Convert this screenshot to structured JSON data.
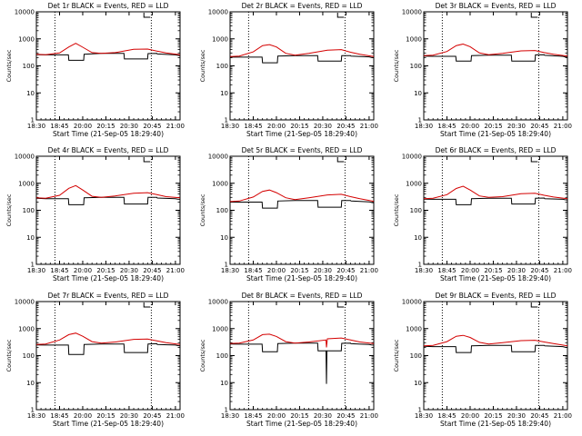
{
  "chart_data": [
    {
      "type": "line",
      "title": "Det 1r BLACK = Events, RED = LLD",
      "xlabel": "Start Time (21-Sep-05 18:29:40)",
      "ylabel": "Counts/sec",
      "xticks": [
        "18:30",
        "18:45",
        "20:00",
        "20:15",
        "20:30",
        "20:45",
        "21:00"
      ],
      "ylim": [
        1,
        10000
      ],
      "yscale": "log",
      "series": [
        {
          "color": "#000000",
          "x": [
            0,
            2,
            6.9,
            7,
            10.2,
            10.3,
            14,
            18.9,
            19,
            23,
            24,
            24.1,
            26,
            26.1,
            30,
            30.5,
            31
          ],
          "y": [
            260,
            255,
            255,
            160,
            160,
            270,
            290,
            290,
            180,
            180,
            180,
            285,
            290,
            275,
            255,
            245,
            240
          ]
        },
        {
          "color": "#d40000",
          "x": [
            0,
            2,
            5,
            7,
            8.5,
            10,
            12,
            14,
            17,
            21,
            24,
            26,
            28,
            31
          ],
          "y": [
            270,
            260,
            300,
            500,
            680,
            490,
            310,
            290,
            310,
            410,
            420,
            350,
            300,
            260
          ]
        }
      ]
    },
    {
      "type": "line",
      "title": "Det 2r BLACK = Events, RED = LLD",
      "xlabel": "Start Time (21-Sep-05 18:29:40)",
      "ylabel": "Counts/sec",
      "xticks": [
        "18:30",
        "18:45",
        "20:00",
        "20:15",
        "20:30",
        "20:45",
        "21:00"
      ],
      "ylim": [
        1,
        10000
      ],
      "yscale": "log",
      "series": [
        {
          "color": "#000000",
          "x": [
            0,
            2,
            6.9,
            7,
            10.2,
            10.3,
            14,
            18.9,
            19,
            23,
            24,
            24.1,
            26,
            26.1,
            30,
            30.5,
            31
          ],
          "y": [
            210,
            210,
            210,
            130,
            130,
            230,
            240,
            240,
            150,
            150,
            150,
            240,
            240,
            230,
            215,
            205,
            200
          ]
        },
        {
          "color": "#d40000",
          "x": [
            0,
            2,
            5,
            7,
            8.5,
            10,
            12,
            14,
            17,
            21,
            24,
            26,
            28,
            31
          ],
          "y": [
            220,
            230,
            330,
            560,
            610,
            500,
            290,
            250,
            290,
            380,
            400,
            320,
            270,
            220
          ]
        }
      ]
    },
    {
      "type": "line",
      "title": "Det 3r BLACK = Events, RED = LLD",
      "xlabel": "Start Time (21-Sep-05 18:29:40)",
      "ylabel": "Counts/sec",
      "xticks": [
        "18:30",
        "18:45",
        "20:00",
        "20:15",
        "20:30",
        "20:45",
        "21:00"
      ],
      "ylim": [
        1,
        10000
      ],
      "yscale": "log",
      "series": [
        {
          "color": "#000000",
          "x": [
            0,
            2,
            6.9,
            7,
            10.2,
            10.3,
            14,
            18.9,
            19,
            23,
            24,
            24.1,
            26,
            26.1,
            30,
            30.5,
            31
          ],
          "y": [
            230,
            225,
            225,
            150,
            150,
            240,
            250,
            250,
            150,
            150,
            150,
            255,
            260,
            245,
            225,
            215,
            210
          ]
        },
        {
          "color": "#d40000",
          "x": [
            0,
            2,
            5,
            7,
            8.5,
            10,
            12,
            14,
            17,
            21,
            24,
            26,
            28,
            31
          ],
          "y": [
            240,
            250,
            340,
            560,
            640,
            510,
            300,
            260,
            290,
            360,
            370,
            310,
            270,
            230
          ]
        }
      ]
    },
    {
      "type": "line",
      "title": "Det 4r BLACK = Events, RED = LLD",
      "xlabel": "Start Time (21-Sep-05 18:29:40)",
      "ylabel": "Counts/sec",
      "xticks": [
        "18:30",
        "18:45",
        "20:00",
        "20:15",
        "20:30",
        "20:45",
        "21:00"
      ],
      "ylim": [
        1,
        10000
      ],
      "yscale": "log",
      "series": [
        {
          "color": "#000000",
          "x": [
            0,
            2,
            6.9,
            7,
            10.2,
            10.3,
            14,
            18.9,
            19,
            23,
            24,
            24.1,
            26,
            26.1,
            30,
            30.5,
            31
          ],
          "y": [
            280,
            270,
            270,
            160,
            160,
            290,
            300,
            300,
            170,
            170,
            170,
            300,
            300,
            285,
            270,
            260,
            255
          ]
        },
        {
          "color": "#d40000",
          "x": [
            0,
            2,
            5,
            7,
            8.5,
            10,
            12,
            14,
            17,
            21,
            24,
            26,
            28,
            31
          ],
          "y": [
            290,
            280,
            360,
            650,
            820,
            560,
            330,
            300,
            340,
            430,
            450,
            380,
            320,
            290
          ]
        }
      ]
    },
    {
      "type": "line",
      "title": "Det 5r BLACK = Events, RED = LLD",
      "xlabel": "Start Time (21-Sep-05 18:29:40)",
      "ylabel": "Counts/sec",
      "xticks": [
        "18:30",
        "18:45",
        "20:00",
        "20:15",
        "20:30",
        "20:45",
        "21:00"
      ],
      "ylim": [
        1,
        10000
      ],
      "yscale": "log",
      "series": [
        {
          "color": "#000000",
          "x": [
            0,
            2,
            6.9,
            7,
            10.2,
            10.3,
            14,
            18.9,
            19,
            23,
            24,
            24.1,
            26,
            26.1,
            30,
            30.5,
            31
          ],
          "y": [
            200,
            200,
            200,
            120,
            120,
            220,
            230,
            230,
            130,
            130,
            130,
            230,
            230,
            220,
            205,
            195,
            190
          ]
        },
        {
          "color": "#d40000",
          "x": [
            0,
            2,
            5,
            7,
            8.5,
            10,
            12,
            14,
            17,
            21,
            24,
            26,
            28,
            31
          ],
          "y": [
            210,
            220,
            310,
            500,
            560,
            450,
            290,
            250,
            290,
            370,
            390,
            320,
            270,
            215
          ]
        }
      ]
    },
    {
      "type": "line",
      "title": "Det 6r BLACK = Events, RED = LLD",
      "xlabel": "Start Time (21-Sep-05 18:29:40)",
      "ylabel": "Counts/sec",
      "xticks": [
        "18:30",
        "18:45",
        "20:00",
        "20:15",
        "20:30",
        "20:45",
        "21:00"
      ],
      "ylim": [
        1,
        10000
      ],
      "yscale": "log",
      "series": [
        {
          "color": "#000000",
          "x": [
            0,
            2,
            6.9,
            7,
            10.2,
            10.3,
            14,
            18.9,
            19,
            23,
            24,
            24.1,
            26,
            26.1,
            30,
            30.5,
            31
          ],
          "y": [
            260,
            255,
            255,
            160,
            160,
            270,
            280,
            280,
            170,
            170,
            170,
            280,
            285,
            270,
            255,
            245,
            240
          ]
        },
        {
          "color": "#d40000",
          "x": [
            0,
            2,
            5,
            7,
            8.5,
            10,
            12,
            14,
            17,
            21,
            24,
            26,
            28,
            31
          ],
          "y": [
            270,
            280,
            380,
            640,
            780,
            560,
            340,
            300,
            320,
            410,
            430,
            360,
            310,
            270
          ]
        }
      ]
    },
    {
      "type": "line",
      "title": "Det 7r BLACK = Events, RED = LLD",
      "xlabel": "Start Time (21-Sep-05 18:29:40)",
      "ylabel": "Counts/sec",
      "xticks": [
        "18:30",
        "18:45",
        "20:00",
        "20:15",
        "20:30",
        "20:45",
        "21:00"
      ],
      "ylim": [
        1,
        10000
      ],
      "yscale": "log",
      "series": [
        {
          "color": "#000000",
          "x": [
            0,
            2,
            6.9,
            7,
            10.2,
            10.3,
            14,
            18.9,
            19,
            23,
            24,
            24.1,
            26,
            26.1,
            30,
            30.5,
            31
          ],
          "y": [
            250,
            245,
            245,
            110,
            110,
            260,
            270,
            270,
            130,
            130,
            130,
            270,
            275,
            260,
            245,
            235,
            230
          ]
        },
        {
          "color": "#d40000",
          "x": [
            0,
            2,
            5,
            7,
            8.5,
            10,
            12,
            14,
            17,
            21,
            24,
            26,
            28,
            31
          ],
          "y": [
            260,
            270,
            380,
            600,
            680,
            520,
            330,
            290,
            320,
            400,
            410,
            350,
            300,
            260
          ]
        }
      ]
    },
    {
      "type": "line",
      "title": "Det 8r BLACK = Events, RED = LLD",
      "xlabel": "Start Time (21-Sep-05 18:29:40)",
      "ylabel": "Counts/sec",
      "xticks": [
        "18:30",
        "18:45",
        "20:00",
        "20:15",
        "20:30",
        "20:45",
        "21:00"
      ],
      "ylim": [
        1,
        10000
      ],
      "yscale": "log",
      "series": [
        {
          "color": "#000000",
          "x": [
            0,
            2,
            6.9,
            7,
            10.2,
            10.3,
            14,
            18.9,
            19,
            20.7,
            20.8,
            20.9,
            24,
            24.1,
            26,
            26.1,
            30,
            30.5,
            31
          ],
          "y": [
            270,
            265,
            265,
            140,
            140,
            280,
            290,
            290,
            150,
            150,
            9,
            150,
            150,
            285,
            290,
            275,
            260,
            250,
            245
          ]
        },
        {
          "color": "#d40000",
          "x": [
            0,
            2,
            5,
            7,
            8.5,
            10,
            12,
            14,
            17,
            20.7,
            20.8,
            21,
            24,
            26,
            28,
            31
          ],
          "y": [
            280,
            290,
            380,
            600,
            620,
            510,
            330,
            290,
            320,
            380,
            200,
            420,
            450,
            380,
            320,
            280
          ]
        }
      ]
    },
    {
      "type": "line",
      "title": "Det 9r BLACK = Events, RED = LLD",
      "xlabel": "Start Time (21-Sep-05 18:29:40)",
      "ylabel": "Counts/sec",
      "xticks": [
        "18:30",
        "18:45",
        "20:00",
        "20:15",
        "20:30",
        "20:45",
        "21:00"
      ],
      "ylim": [
        1,
        10000
      ],
      "yscale": "log",
      "series": [
        {
          "color": "#000000",
          "x": [
            0,
            2,
            6.9,
            7,
            10.2,
            10.3,
            14,
            18.9,
            19,
            23,
            24,
            24.1,
            26,
            26.1,
            30,
            30.5,
            31
          ],
          "y": [
            220,
            215,
            215,
            130,
            130,
            230,
            240,
            240,
            140,
            140,
            140,
            240,
            240,
            230,
            215,
            205,
            200
          ]
        },
        {
          "color": "#d40000",
          "x": [
            0,
            2,
            5,
            7,
            8.5,
            10,
            12,
            14,
            17,
            21,
            24,
            26,
            28,
            31
          ],
          "y": [
            230,
            240,
            330,
            520,
            560,
            470,
            310,
            270,
            300,
            360,
            370,
            320,
            280,
            230
          ]
        }
      ]
    }
  ]
}
